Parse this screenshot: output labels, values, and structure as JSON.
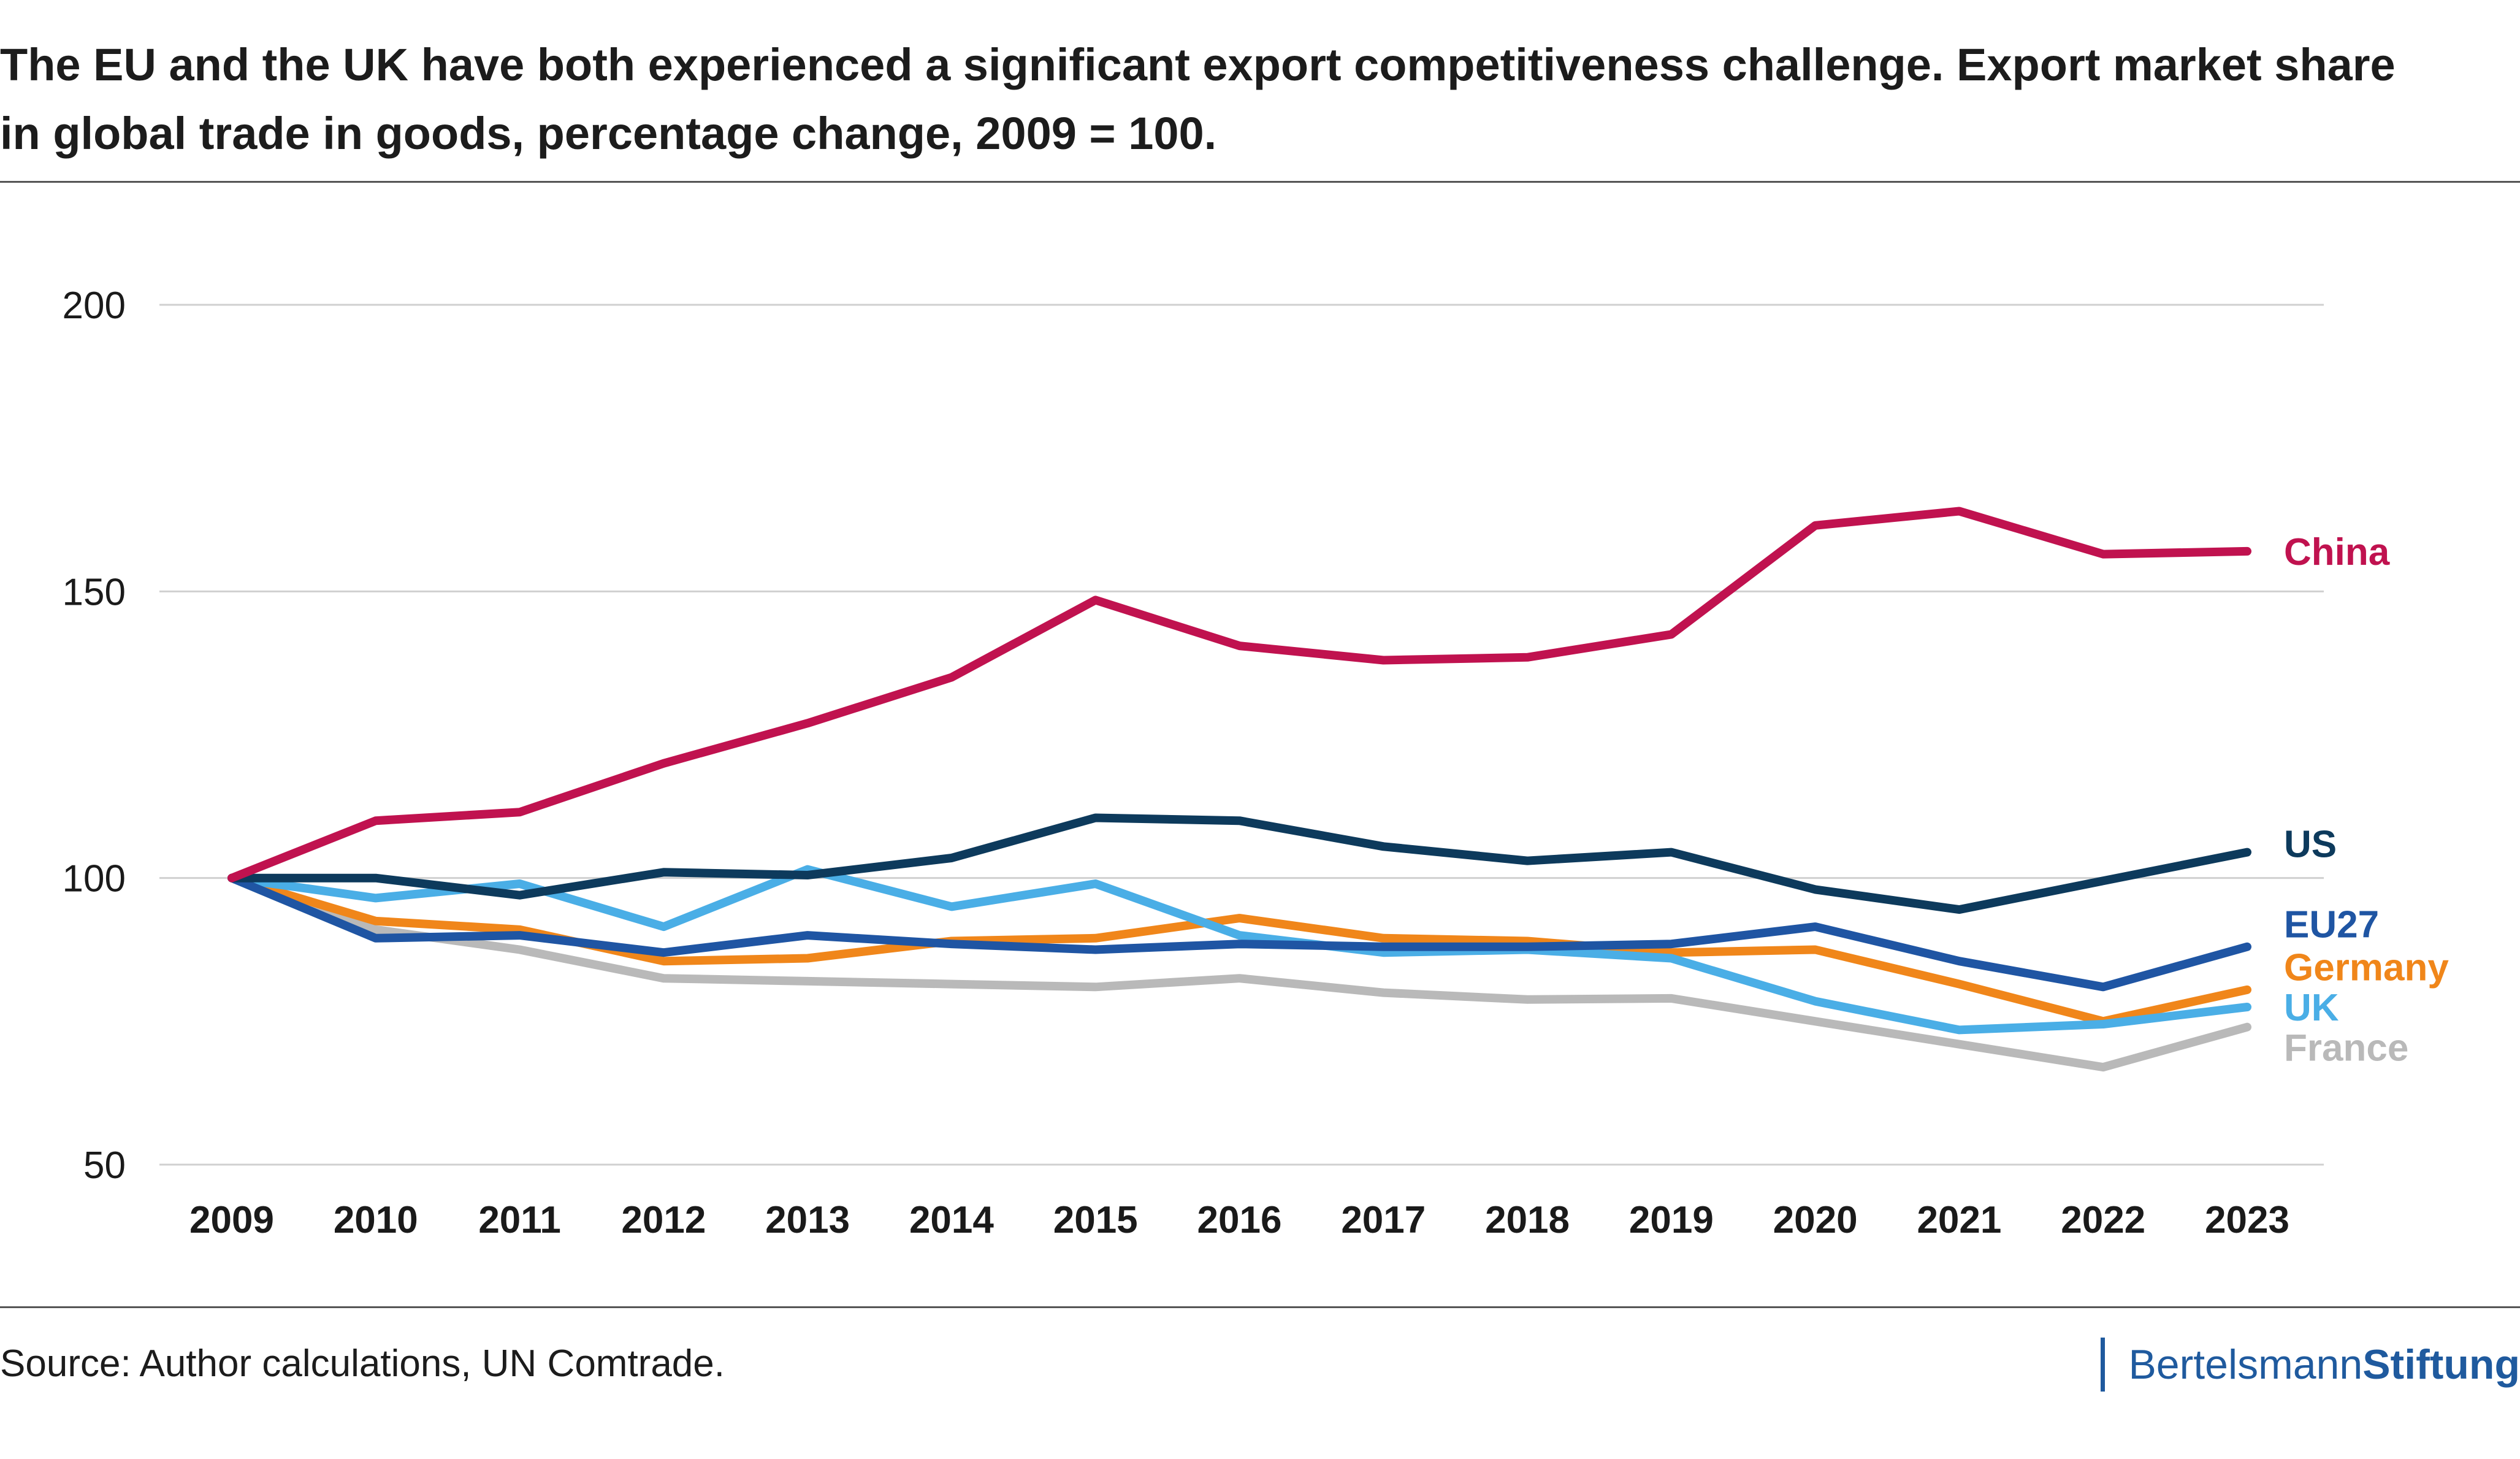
{
  "title_line1": "The EU and the UK have both experienced a significant export competitiveness challenge. Export market share",
  "title_line2": "in global trade in goods, percentage change, 2009 = 100.",
  "source": "Source: Author calculations, UN Comtrade.",
  "brand": {
    "part1": "Bertelsmann",
    "part2": "Stiftung"
  },
  "colors": {
    "China": "#c0124f",
    "US": "#0d3a5c",
    "EU27": "#1f55a3",
    "Germany": "#f0861a",
    "UK": "#4aaee6",
    "France": "#b9b9b9",
    "grid": "#d0d0d0",
    "brand": "#1f5a9e"
  },
  "chart_data": {
    "type": "line",
    "title": "The EU and the UK have both experienced a significant export competitiveness challenge. Export market share in global trade in goods, percentage change, 2009 = 100.",
    "x": [
      "2009",
      "2010",
      "2011",
      "2012",
      "2013",
      "2014",
      "2015",
      "2016",
      "2017",
      "2018",
      "2019",
      "2020",
      "2021",
      "2022",
      "2023"
    ],
    "yticks": [
      "50",
      "100",
      "150",
      "200"
    ],
    "ylim": [
      50,
      200
    ],
    "grid": true,
    "legend": "direct labels at right end of lines",
    "series": [
      {
        "name": "France",
        "values": [
          100,
          91,
          87.5,
          82.5,
          82,
          81.5,
          81,
          82.5,
          80,
          78.8,
          79,
          75,
          71,
          67,
          74
        ]
      },
      {
        "name": "Germany",
        "values": [
          100,
          92.5,
          91,
          85.5,
          86,
          89,
          89.5,
          93,
          89.5,
          89,
          87,
          87.5,
          81.5,
          75,
          80.5
        ]
      },
      {
        "name": "UK",
        "values": [
          100,
          96.5,
          99,
          91.5,
          101.5,
          95,
          99,
          90,
          87,
          87.5,
          86,
          78.5,
          73.5,
          74.5,
          77.5
        ]
      },
      {
        "name": "EU27",
        "values": [
          100,
          89.5,
          90,
          87,
          90,
          88.5,
          87.5,
          88.5,
          88,
          88,
          88.5,
          91.5,
          85.5,
          81,
          88
        ]
      },
      {
        "name": "US",
        "values": [
          100,
          100,
          97,
          101,
          100.5,
          103.5,
          110.5,
          110,
          105.5,
          103,
          104.5,
          98,
          94.5,
          99.5,
          104.5
        ]
      },
      {
        "name": "China",
        "values": [
          100,
          110,
          111.5,
          120,
          127,
          135,
          148.5,
          140.5,
          138,
          138.5,
          142.5,
          161.5,
          164,
          156.5,
          157
        ]
      }
    ],
    "labels": [
      {
        "series": "China",
        "text": "China",
        "value": 157
      },
      {
        "series": "US",
        "text": "US",
        "value": 106
      },
      {
        "series": "EU27",
        "text": "EU27",
        "value": 92
      },
      {
        "series": "Germany",
        "text": "Germany",
        "value": 84.5
      },
      {
        "series": "UK",
        "text": "UK",
        "value": 77.5
      },
      {
        "series": "France",
        "text": "France",
        "value": 70.5
      }
    ]
  }
}
